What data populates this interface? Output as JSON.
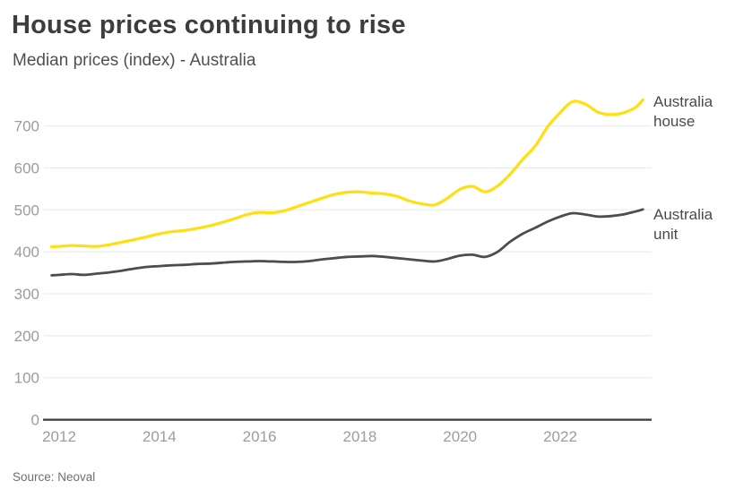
{
  "chart_data": {
    "type": "line",
    "title": "House prices continuing to rise",
    "subtitle": "Median prices (index) - Australia",
    "source": "Source: Neoval",
    "xlabel": "",
    "ylabel": "",
    "legend_position": "right-of-line-annotations",
    "grid": "horizontal",
    "x_axis": {
      "tick_labels": [
        "2012",
        "2014",
        "2016",
        "2018",
        "2020",
        "2022"
      ],
      "tick_years": [
        2012,
        2014,
        2016,
        2018,
        2020,
        2022
      ],
      "range": [
        2011.85,
        2023.85
      ]
    },
    "y_axis": {
      "ticks": [
        0,
        100,
        200,
        300,
        400,
        500,
        600,
        700
      ],
      "range": [
        0,
        800
      ]
    },
    "colors": {
      "house_line": "#ffdf12",
      "unit_line": "#4d4d4d",
      "gridline": "#e8e8e8",
      "baseline": "#3b3b3b",
      "tick_label": "#9c9c9c",
      "annotation_text": "#4a4a4a"
    },
    "x": [
      2011.85,
      2012,
      2012.25,
      2012.5,
      2012.75,
      2013,
      2013.25,
      2013.5,
      2013.75,
      2014,
      2014.25,
      2014.5,
      2014.75,
      2015,
      2015.25,
      2015.5,
      2015.75,
      2016,
      2016.25,
      2016.5,
      2016.75,
      2017,
      2017.25,
      2017.5,
      2017.75,
      2018,
      2018.25,
      2018.5,
      2018.75,
      2019,
      2019.25,
      2019.5,
      2019.75,
      2020,
      2020.25,
      2020.5,
      2020.75,
      2021,
      2021.25,
      2021.5,
      2021.75,
      2022,
      2022.25,
      2022.5,
      2022.75,
      2023,
      2023.25,
      2023.5,
      2023.65
    ],
    "series": [
      {
        "name": "Australia house",
        "color": "#ffdf12",
        "stroke_width": 3.2,
        "values": [
          412,
          413,
          415,
          414,
          413,
          417,
          423,
          429,
          436,
          443,
          448,
          451,
          456,
          462,
          470,
          479,
          489,
          494,
          493,
          498,
          508,
          518,
          528,
          537,
          542,
          543,
          540,
          538,
          532,
          521,
          514,
          512,
          528,
          549,
          556,
          543,
          557,
          585,
          620,
          652,
          698,
          732,
          758,
          752,
          733,
          727,
          731,
          744,
          762
        ]
      },
      {
        "name": "Australia unit",
        "color": "#4d4d4d",
        "stroke_width": 2.8,
        "values": [
          344,
          345,
          347,
          345,
          348,
          351,
          355,
          360,
          364,
          366,
          368,
          369,
          371,
          372,
          374,
          376,
          377,
          378,
          377,
          376,
          376,
          378,
          382,
          385,
          388,
          389,
          390,
          388,
          385,
          382,
          379,
          377,
          383,
          391,
          393,
          388,
          400,
          424,
          443,
          457,
          472,
          484,
          492,
          489,
          484,
          485,
          489,
          496,
          501
        ]
      }
    ]
  }
}
